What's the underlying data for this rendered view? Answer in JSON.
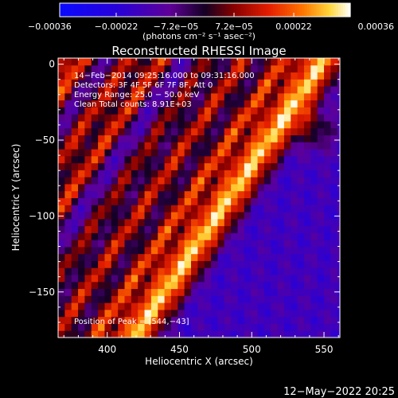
{
  "chart_data": {
    "type": "heatmap",
    "title": "Reconstructed RHESSI Image",
    "xlabel": "Heliocentric X (arcsec)",
    "ylabel": "Heliocentric Y (arcsec)",
    "xlim": [
      366,
      561
    ],
    "ylim": [
      -180,
      4
    ],
    "x_ticks": [
      400,
      450,
      500,
      550
    ],
    "y_ticks": [
      0,
      -50,
      -100,
      -150
    ],
    "x_tick_labels": [
      "400",
      "450",
      "500",
      "550"
    ],
    "y_tick_labels": [
      "0",
      "−50",
      "−100",
      "−150"
    ],
    "colorbar": {
      "range": [
        -0.00036,
        0.00036
      ],
      "tick_values": [
        -0.00036,
        -0.00022,
        -7.2e-05,
        7.2e-05,
        0.00022,
        0.00036
      ],
      "tick_labels": [
        "−0.00036",
        "−0.00022",
        "−7.2e−05",
        "7.2e−05",
        "0.00022",
        "0.00036"
      ],
      "unit_label": "(photons cm⁻² s⁻¹ asec⁻²)"
    },
    "annotations": [
      "14−Feb−2014 09:25:16.000 to 09:31:16.000",
      "Detectors: 3F 4F 5F 6F 7F 8F, Att 0",
      "Energy Range: 25.0 − 50.0 keV",
      "Clean     Total counts: 8.91E+03"
    ],
    "peak_label": "Position of Peak = [544,−43]",
    "peak": [
      544,
      -43
    ],
    "timestamp": "12−May−2022 20:25",
    "stripes": [
      {
        "c": 368,
        "v": 0.0001
      },
      {
        "c": 382,
        "v": 0.00024
      },
      {
        "c": 398,
        "v": -0.0001
      },
      {
        "c": 412,
        "v": 0.00018
      },
      {
        "c": 424,
        "v": -4e-05
      },
      {
        "c": 436,
        "v": 0.00022
      },
      {
        "c": 450,
        "v": -0.00014
      },
      {
        "c": 466,
        "v": 0.00012
      },
      {
        "c": 478,
        "v": -6e-05
      },
      {
        "c": 492,
        "v": 0.0002
      },
      {
        "c": 506,
        "v": -4e-05
      },
      {
        "c": 520,
        "v": 0.00026
      },
      {
        "c": 536,
        "v": 0.00016
      },
      {
        "c": 548,
        "v": 0.00034
      },
      {
        "c": 560,
        "v": 8e-05
      }
    ],
    "slope": 0.72,
    "stripe_sigma": 7.5
  }
}
